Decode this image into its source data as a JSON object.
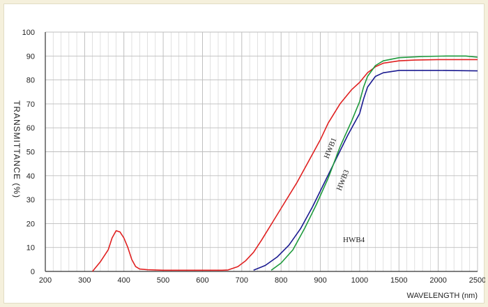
{
  "chart_data": {
    "type": "line",
    "xlabel": "WAVELENGTH (nm)",
    "ylabel": "TRANSMITTANCE (%)",
    "x_ticks": [
      "200",
      "300",
      "400",
      "500",
      "600",
      "700",
      "800",
      "900",
      "1000",
      "1500",
      "2000",
      "2500"
    ],
    "y_ticks": [
      "0",
      "10",
      "20",
      "30",
      "40",
      "50",
      "60",
      "70",
      "80",
      "90",
      "100"
    ],
    "ylim": [
      0,
      100
    ],
    "grid": true,
    "series": [
      {
        "name": "HWB1",
        "color": "#e02020",
        "points": [
          [
            320,
            0
          ],
          [
            340,
            4
          ],
          [
            360,
            9
          ],
          [
            370,
            14
          ],
          [
            380,
            17
          ],
          [
            390,
            16.5
          ],
          [
            400,
            14
          ],
          [
            410,
            10
          ],
          [
            420,
            5
          ],
          [
            430,
            2
          ],
          [
            440,
            1
          ],
          [
            460,
            0.7
          ],
          [
            500,
            0.5
          ],
          [
            550,
            0.5
          ],
          [
            600,
            0.5
          ],
          [
            650,
            0.5
          ],
          [
            665,
            0.6
          ],
          [
            690,
            2
          ],
          [
            710,
            4.5
          ],
          [
            730,
            8
          ],
          [
            750,
            13
          ],
          [
            780,
            21
          ],
          [
            810,
            29
          ],
          [
            840,
            37
          ],
          [
            870,
            46
          ],
          [
            900,
            55
          ],
          [
            920,
            62
          ],
          [
            950,
            70
          ],
          [
            980,
            76
          ],
          [
            1000,
            79
          ],
          [
            1100,
            83
          ],
          [
            1200,
            85.5
          ],
          [
            1300,
            87
          ],
          [
            1500,
            88
          ],
          [
            1700,
            88.3
          ],
          [
            2000,
            88.5
          ],
          [
            2500,
            88.5
          ]
        ]
      },
      {
        "name": "HWB3",
        "color": "#1a1a90",
        "points": [
          [
            730,
            0.5
          ],
          [
            760,
            2.5
          ],
          [
            790,
            6
          ],
          [
            820,
            11
          ],
          [
            850,
            18
          ],
          [
            880,
            27
          ],
          [
            910,
            37
          ],
          [
            940,
            47
          ],
          [
            970,
            57
          ],
          [
            1000,
            66
          ],
          [
            1050,
            72
          ],
          [
            1100,
            77
          ],
          [
            1200,
            81.5
          ],
          [
            1300,
            83
          ],
          [
            1500,
            84
          ],
          [
            2000,
            84
          ],
          [
            2500,
            83.8
          ]
        ]
      },
      {
        "name": "HWB4",
        "color": "#1e9a3c",
        "points": [
          [
            775,
            0.5
          ],
          [
            800,
            3.5
          ],
          [
            830,
            9
          ],
          [
            860,
            18
          ],
          [
            890,
            28
          ],
          [
            920,
            39
          ],
          [
            950,
            52
          ],
          [
            980,
            63
          ],
          [
            1000,
            71
          ],
          [
            1050,
            77
          ],
          [
            1100,
            81.5
          ],
          [
            1200,
            86
          ],
          [
            1300,
            88
          ],
          [
            1500,
            89.3
          ],
          [
            1800,
            89.8
          ],
          [
            2100,
            90
          ],
          [
            2350,
            90
          ],
          [
            2500,
            89.5
          ]
        ]
      }
    ]
  }
}
